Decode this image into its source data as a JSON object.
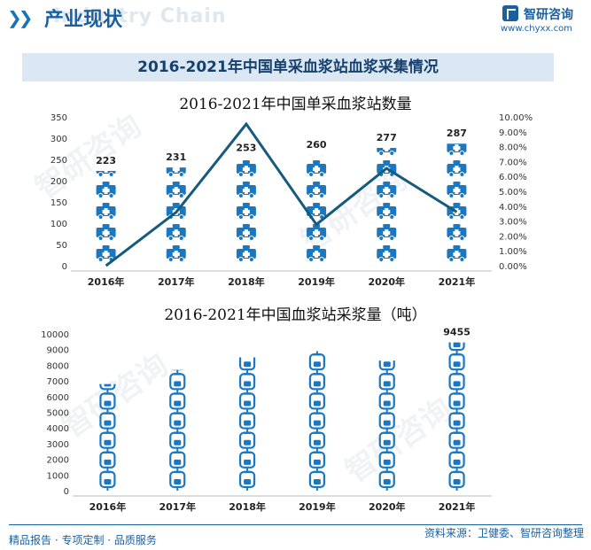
{
  "header": {
    "section_title": "产业现状",
    "bg_text": "Industry Chain",
    "logo_name": "智研咨询",
    "logo_url": "www.chyxx.com"
  },
  "main_title": "2016-2021年中国单采血浆站血浆采集情况",
  "chart_data": [
    {
      "type": "bar",
      "title": "2016-2021年中国单采血浆站数量",
      "categories": [
        "2016年",
        "2017年",
        "2018年",
        "2019年",
        "2020年",
        "2021年"
      ],
      "series": [
        {
          "values": [
            223,
            231,
            253,
            260,
            277,
            287
          ],
          "color": "#1a78c2",
          "axis": "left"
        },
        {
          "type": "line",
          "values": [
            0.0,
            3.59,
            9.52,
            2.77,
            6.54,
            3.61
          ],
          "color": "#165a7c",
          "axis": "right"
        }
      ],
      "data_labels": [
        "223",
        "231",
        "253",
        "260",
        "277",
        "287"
      ],
      "y_left": {
        "min": 0,
        "max": 350,
        "ticks": [
          "0",
          "50",
          "100",
          "150",
          "200",
          "250",
          "300",
          "350"
        ]
      },
      "y_right": {
        "min": 0,
        "max": 10,
        "ticks": [
          "0.00%",
          "1.00%",
          "2.00%",
          "3.00%",
          "4.00%",
          "5.00%",
          "6.00%",
          "7.00%",
          "8.00%",
          "9.00%",
          "10.00%"
        ]
      },
      "icon": "ambulance-icon",
      "icon_unit": 50
    },
    {
      "type": "bar",
      "title": "2016-2021年中国血浆站采浆量（吨）",
      "categories": [
        "2016年",
        "2017年",
        "2018年",
        "2019年",
        "2020年",
        "2021年"
      ],
      "series": [
        {
          "values": [
            6800,
            7700,
            8500,
            8900,
            8300,
            9455
          ],
          "color": "#1a78c2"
        }
      ],
      "data_labels": [
        "",
        "",
        "",
        "",
        "",
        "9455"
      ],
      "y": {
        "min": 0,
        "max": 10000,
        "ticks": [
          "0",
          "1000",
          "2000",
          "3000",
          "4000",
          "5000",
          "6000",
          "7000",
          "8000",
          "9000",
          "10000"
        ]
      },
      "icon": "blood-bag-icon",
      "icon_unit": 1250
    }
  ],
  "footer": {
    "left": "精品报告 · 专项定制 · 品质服务",
    "right": "资料来源：卫健委、智研咨询整理"
  }
}
